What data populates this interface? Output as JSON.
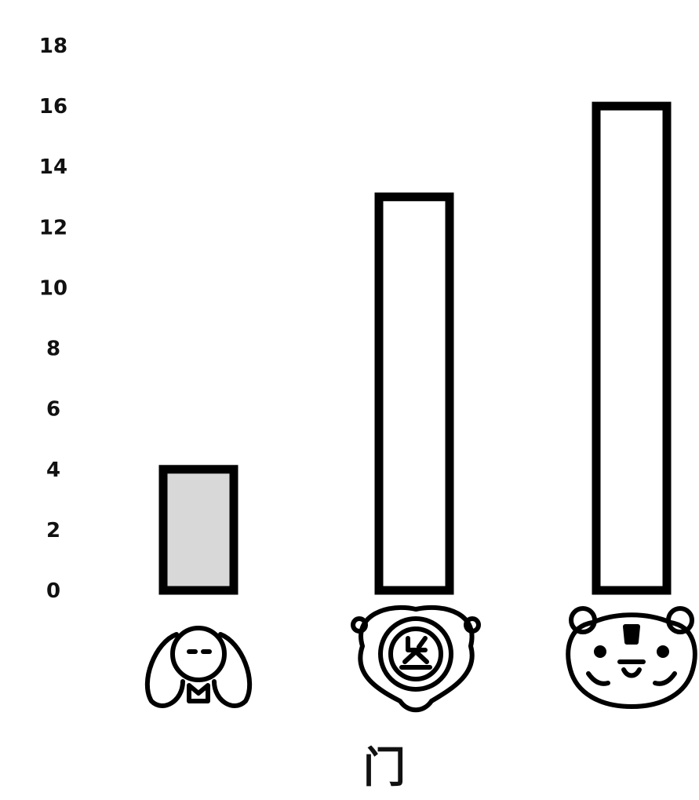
{
  "chart_data": {
    "type": "bar",
    "categories": [
      "rabbit",
      "lion",
      "tiger"
    ],
    "values": [
      4,
      13,
      16
    ],
    "title": "",
    "xlabel": "门",
    "ylabel": "",
    "ylim": [
      0,
      18
    ],
    "yticks": [
      "0",
      "2",
      "4",
      "6",
      "8",
      "10",
      "12",
      "14",
      "16",
      "18"
    ],
    "grid": false,
    "legend": "none"
  },
  "colors": {
    "bar_outline": "#000000",
    "bar_fill_first": "#d8d8d8",
    "bar_fill_other": "#ffffff"
  },
  "icons": {
    "category_icons": [
      "rabbit-icon",
      "lion-icon",
      "tiger-icon"
    ]
  }
}
